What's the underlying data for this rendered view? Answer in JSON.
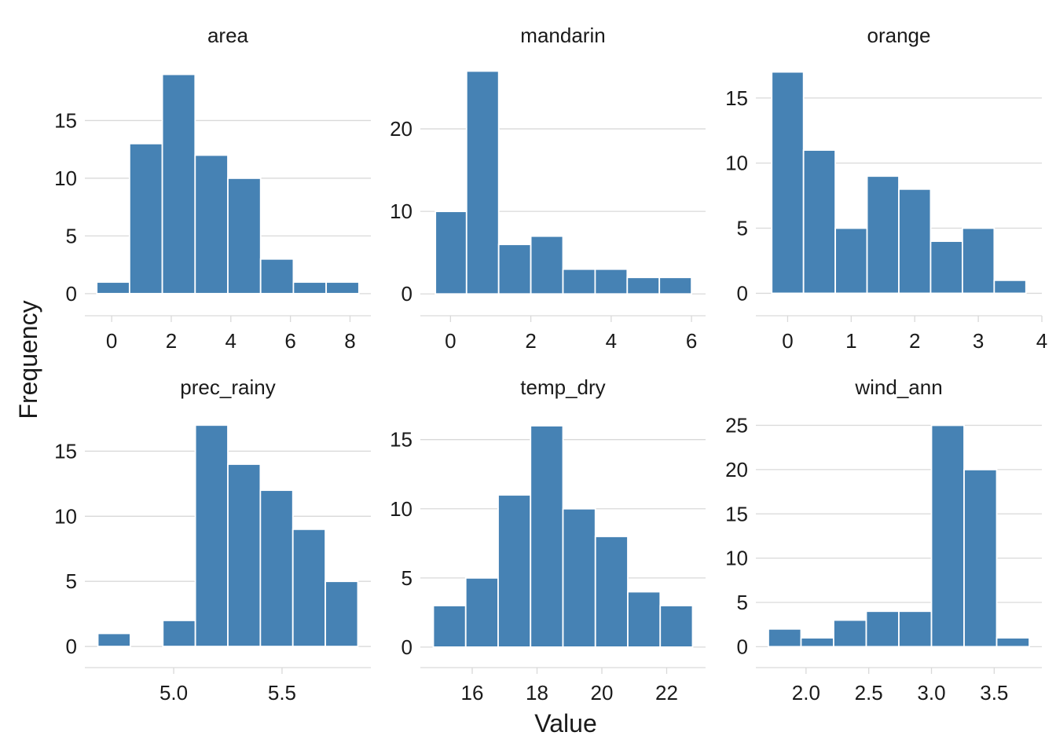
{
  "chart_data": {
    "type": "histogram-facets",
    "xlabel": "Value",
    "ylabel": "Frequency",
    "bar_color": "#4682B4",
    "bar_edge_color": "#ffffff",
    "grid_color": "#d9d9d9",
    "grid": "y-major",
    "facet_layout": "2x3",
    "facets": [
      {
        "name": "area",
        "bins": [
          {
            "x0": -0.5,
            "x1": 0.6,
            "count": 1
          },
          {
            "x0": 0.6,
            "x1": 1.7,
            "count": 13
          },
          {
            "x0": 1.7,
            "x1": 2.8,
            "count": 19
          },
          {
            "x0": 2.8,
            "x1": 3.9,
            "count": 12
          },
          {
            "x0": 3.9,
            "x1": 5.0,
            "count": 10
          },
          {
            "x0": 5.0,
            "x1": 6.1,
            "count": 3
          },
          {
            "x0": 6.1,
            "x1": 7.2,
            "count": 1
          },
          {
            "x0": 7.2,
            "x1": 8.3,
            "count": 1
          }
        ],
        "xlim": [
          -0.9,
          8.7
        ],
        "ylim": [
          -1.1,
          20
        ],
        "xticks": [
          0,
          2,
          4,
          6,
          8
        ],
        "xtick_labels": [
          "0",
          "2",
          "4",
          "6",
          "8"
        ],
        "yticks": [
          0,
          5,
          10,
          15
        ],
        "ytick_labels": [
          "0",
          "5",
          "10",
          "15"
        ]
      },
      {
        "name": "mandarin",
        "bins": [
          {
            "x0": -0.375,
            "x1": 0.4,
            "count": 10
          },
          {
            "x0": 0.4,
            "x1": 1.2,
            "count": 27
          },
          {
            "x0": 1.2,
            "x1": 2.0,
            "count": 6
          },
          {
            "x0": 2.0,
            "x1": 2.8,
            "count": 7
          },
          {
            "x0": 2.8,
            "x1": 3.6,
            "count": 3
          },
          {
            "x0": 3.6,
            "x1": 4.4,
            "count": 3
          },
          {
            "x0": 4.4,
            "x1": 5.2,
            "count": 2
          },
          {
            "x0": 5.2,
            "x1": 6.0,
            "count": 2
          }
        ],
        "xlim": [
          -0.75,
          6.35
        ],
        "ylim": [
          -1.5,
          28
        ],
        "xticks": [
          0,
          2,
          4,
          6
        ],
        "xtick_labels": [
          "0",
          "2",
          "4",
          "6"
        ],
        "yticks": [
          0,
          10,
          20
        ],
        "ytick_labels": [
          "0",
          "10",
          "20"
        ]
      },
      {
        "name": "orange",
        "bins": [
          {
            "x0": -0.25,
            "x1": 0.25,
            "count": 17
          },
          {
            "x0": 0.25,
            "x1": 0.75,
            "count": 11
          },
          {
            "x0": 0.75,
            "x1": 1.25,
            "count": 5
          },
          {
            "x0": 1.25,
            "x1": 1.75,
            "count": 9
          },
          {
            "x0": 1.75,
            "x1": 2.25,
            "count": 8
          },
          {
            "x0": 2.25,
            "x1": 2.75,
            "count": 4
          },
          {
            "x0": 2.75,
            "x1": 3.25,
            "count": 5
          },
          {
            "x0": 3.25,
            "x1": 3.75,
            "count": 1
          }
        ],
        "xlim": [
          -0.5,
          4.0
        ],
        "ylim": [
          -1.0,
          17.7
        ],
        "xticks": [
          0,
          1,
          2,
          3,
          4
        ],
        "xtick_labels": [
          "0",
          "1",
          "2",
          "3",
          "4"
        ],
        "yticks": [
          0,
          5,
          10,
          15
        ],
        "ytick_labels": [
          "0",
          "5",
          "10",
          "15"
        ]
      },
      {
        "name": "prec_rainy",
        "bins": [
          {
            "x0": 4.65,
            "x1": 4.8,
            "count": 1
          },
          {
            "x0": 4.8,
            "x1": 4.95,
            "count": 0
          },
          {
            "x0": 4.95,
            "x1": 5.1,
            "count": 2
          },
          {
            "x0": 5.1,
            "x1": 5.25,
            "count": 17
          },
          {
            "x0": 5.25,
            "x1": 5.4,
            "count": 14
          },
          {
            "x0": 5.4,
            "x1": 5.55,
            "count": 12
          },
          {
            "x0": 5.55,
            "x1": 5.7,
            "count": 9
          },
          {
            "x0": 5.7,
            "x1": 5.85,
            "count": 5
          }
        ],
        "xlim": [
          4.59,
          5.91
        ],
        "ylim": [
          -0.9,
          17.8
        ],
        "xticks": [
          5.0,
          5.5
        ],
        "xtick_labels": [
          "5.0",
          "5.5"
        ],
        "yticks": [
          0,
          5,
          10,
          15
        ],
        "ytick_labels": [
          "0",
          "5",
          "10",
          "15"
        ]
      },
      {
        "name": "temp_dry",
        "bins": [
          {
            "x0": 14.8,
            "x1": 15.8,
            "count": 3
          },
          {
            "x0": 15.8,
            "x1": 16.8,
            "count": 5
          },
          {
            "x0": 16.8,
            "x1": 17.8,
            "count": 11
          },
          {
            "x0": 17.8,
            "x1": 18.8,
            "count": 16
          },
          {
            "x0": 18.8,
            "x1": 19.8,
            "count": 10
          },
          {
            "x0": 19.8,
            "x1": 20.8,
            "count": 8
          },
          {
            "x0": 20.8,
            "x1": 21.8,
            "count": 4
          },
          {
            "x0": 21.8,
            "x1": 22.8,
            "count": 3
          }
        ],
        "xlim": [
          14.4,
          23.2
        ],
        "ylim": [
          -0.8,
          16.8
        ],
        "xticks": [
          16,
          18,
          20,
          22
        ],
        "xtick_labels": [
          "16",
          "18",
          "20",
          "22"
        ],
        "yticks": [
          0,
          5,
          10,
          15
        ],
        "ytick_labels": [
          "0",
          "5",
          "10",
          "15"
        ]
      },
      {
        "name": "wind_ann",
        "bins": [
          {
            "x0": 1.7,
            "x1": 1.96,
            "count": 2
          },
          {
            "x0": 1.96,
            "x1": 2.22,
            "count": 1
          },
          {
            "x0": 2.22,
            "x1": 2.48,
            "count": 3
          },
          {
            "x0": 2.48,
            "x1": 2.74,
            "count": 4
          },
          {
            "x0": 2.74,
            "x1": 3.0,
            "count": 4
          },
          {
            "x0": 3.0,
            "x1": 3.26,
            "count": 25
          },
          {
            "x0": 3.26,
            "x1": 3.52,
            "count": 20
          },
          {
            "x0": 3.52,
            "x1": 3.78,
            "count": 1
          }
        ],
        "xlim": [
          1.6,
          3.88
        ],
        "ylim": [
          -1.3,
          26.2
        ],
        "xticks": [
          2.0,
          2.5,
          3.0,
          3.5
        ],
        "xtick_labels": [
          "2.0",
          "2.5",
          "3.0",
          "3.5"
        ],
        "yticks": [
          0,
          5,
          10,
          15,
          20,
          25
        ],
        "ytick_labels": [
          "0",
          "5",
          "10",
          "15",
          "20",
          "25"
        ]
      }
    ]
  }
}
